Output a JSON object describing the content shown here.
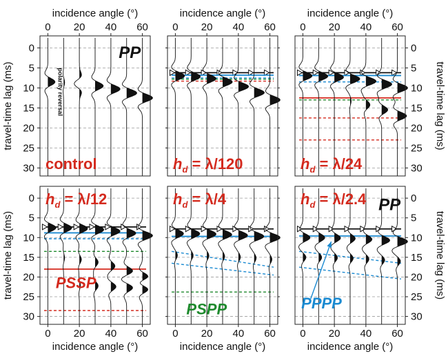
{
  "chart_data": {
    "type": "line",
    "x_label": "incidence angle (°)",
    "y_label": "travel-time lag (ms)",
    "x_ticks": [
      0,
      20,
      40,
      60
    ],
    "y_ticks": [
      0,
      5,
      10,
      15,
      20,
      25,
      30
    ],
    "xlim": [
      -5,
      65
    ],
    "ylim": [
      32,
      -3
    ],
    "trace_angles": [
      0,
      10,
      20,
      30,
      40,
      50,
      60
    ],
    "grid": "dashed horizontal",
    "colors": {
      "pp": "#111111",
      "pssp": "#d42a1e",
      "pspp": "#1f8a2e",
      "pppp": "#1b8ad1"
    },
    "panels": [
      {
        "id": "control",
        "label_prefix": "",
        "label_sub": "",
        "label_suffix": "control",
        "annotations": [
          {
            "text": "PP",
            "class": "blk-i",
            "x": 45,
            "y": 2.5,
            "size": 24
          },
          {
            "text": "polarity reversal",
            "class": "small",
            "x": 6.5,
            "y": 11,
            "size": 9,
            "rotate": 90
          }
        ],
        "events": [
          {
            "t0": 8.5,
            "amp": [
              0.7,
              0.1,
              -0.5,
              0.8,
              0.9,
              1.0,
              1.0
            ],
            "move": 4,
            "ext": [
              1,
              1,
              1,
              1,
              1,
              1,
              1
            ]
          }
        ],
        "lines": []
      },
      {
        "id": "l120",
        "label_prefix": "h",
        "label_sub": "d",
        "label_suffix": " = λ/120",
        "annotations": [],
        "events": [
          {
            "t0": 7,
            "amp": [
              0.9,
              0.9,
              0.9,
              0.95,
              1.0,
              1.0,
              1.0
            ],
            "move": 6,
            "ext": [
              1,
              1,
              1,
              1,
              1,
              1,
              1
            ]
          }
        ],
        "lines": [
          {
            "y": 6.2,
            "color": "black",
            "dash": "solid",
            "markers": true
          },
          {
            "y": 6.8,
            "color": "blue",
            "dash": "solid"
          },
          {
            "y": 7.5,
            "color": "blue",
            "dash": "dashed"
          },
          {
            "y": 8.3,
            "color": "red",
            "dash": "dashed"
          },
          {
            "y": 7.8,
            "color": "green",
            "dash": "dashed"
          }
        ]
      },
      {
        "id": "l24",
        "label_prefix": "h",
        "label_sub": "d",
        "label_suffix": " = λ/24",
        "annotations": [],
        "events": [
          {
            "t0": 7,
            "amp": [
              0.9,
              0.9,
              0.9,
              0.95,
              1.0,
              1.0,
              1.0
            ],
            "move": 3,
            "ext": [
              1,
              1,
              1,
              1,
              1,
              1,
              1
            ]
          },
          {
            "t0": 12,
            "amp": [
              0,
              0,
              0,
              0.1,
              0.4,
              0.6,
              0.9
            ],
            "move": 5,
            "ext": [
              1,
              1,
              1,
              1,
              1,
              1,
              1
            ]
          }
        ],
        "lines": [
          {
            "y": 6.2,
            "color": "black",
            "dash": "solid",
            "markers": true
          },
          {
            "y": 6.9,
            "color": "blue",
            "dash": "solid"
          },
          {
            "y": 8.5,
            "color": "blue",
            "dash": "dashed"
          },
          {
            "y": 12.5,
            "color": "red",
            "dash": "solid"
          },
          {
            "y": 13.0,
            "color": "green",
            "dash": "dashed"
          },
          {
            "y": 17.5,
            "color": "red",
            "dash": "dashed"
          },
          {
            "y": 23.0,
            "color": "red",
            "dash": "dashed"
          }
        ]
      },
      {
        "id": "l12",
        "label_prefix": "h",
        "label_sub": "d",
        "label_suffix": " = λ/12",
        "annotations": [
          {
            "text": "PSSP",
            "class": "red-i",
            "x": 5,
            "y": 22.8,
            "size": 22
          }
        ],
        "events": [
          {
            "t0": 7.5,
            "amp": [
              0.8,
              0.8,
              0.8,
              0.85,
              0.9,
              0.9,
              1.0
            ],
            "move": 2,
            "ext": [
              1,
              1,
              1,
              1,
              1,
              1,
              1
            ]
          },
          {
            "t0": 15,
            "amp": [
              0,
              0.1,
              0.2,
              0.3,
              0.4,
              0.6,
              0.7
            ],
            "move": 5,
            "ext": [
              1,
              1,
              1,
              1,
              1,
              1,
              1
            ]
          },
          {
            "t0": 22,
            "amp": [
              0,
              0,
              0.1,
              0.3,
              0.5,
              0.6,
              0.7
            ],
            "move": 1,
            "ext": [
              1,
              1,
              1,
              1,
              1,
              1,
              1
            ]
          }
        ],
        "lines": [
          {
            "y": 7.3,
            "color": "black",
            "dash": "solid",
            "markers": true
          },
          {
            "y": 8.8,
            "color": "blue",
            "dash": "solid"
          },
          {
            "y": 10.3,
            "color": "blue",
            "dash": "dashed"
          },
          {
            "y": 13.5,
            "color": "green",
            "dash": "dashed"
          },
          {
            "y": 18.0,
            "color": "red",
            "dash": "solid"
          },
          {
            "y": 28.5,
            "color": "red",
            "dash": "dashed"
          }
        ]
      },
      {
        "id": "l4",
        "label_prefix": "h",
        "label_sub": "d",
        "label_suffix": " = λ/4",
        "annotations": [
          {
            "text": "PSPP",
            "class": "grn-i",
            "x": 7,
            "y": 29.5,
            "size": 22
          }
        ],
        "events": [
          {
            "t0": 9,
            "amp": [
              0.8,
              0.85,
              0.9,
              0.9,
              0.9,
              0.95,
              1.0
            ],
            "move": 1,
            "ext": [
              1,
              1,
              1,
              1,
              1,
              1,
              1
            ]
          },
          {
            "t0": 14.5,
            "amp": [
              0.2,
              0.2,
              0.2,
              0.2,
              0.2,
              0.2,
              0.2
            ],
            "move": 1,
            "ext": [
              1,
              1,
              1,
              1,
              1,
              1,
              1
            ]
          }
        ],
        "lines": [
          {
            "y": 7.8,
            "color": "black",
            "dash": "solid",
            "markers": true
          },
          {
            "y": 9.7,
            "color": "blue",
            "dash": "solid"
          },
          {
            "y": 13.5,
            "color": "blue",
            "dash": "dashed",
            "slope": 4
          },
          {
            "y": 16.5,
            "color": "blue",
            "dash": "dashed",
            "slope": 3
          },
          {
            "y": 23.8,
            "color": "green",
            "dash": "dashed"
          }
        ]
      },
      {
        "id": "l2_4",
        "label_prefix": "h",
        "label_sub": "d",
        "label_suffix": " = λ/2.4",
        "annotations": [
          {
            "text": "PP",
            "class": "blk-i",
            "x": 48,
            "y": 3,
            "size": 24
          },
          {
            "text": "PPPP",
            "class": "blu-i",
            "x": -1,
            "y": 28,
            "size": 22
          }
        ],
        "events": [
          {
            "t0": 10,
            "amp": [
              0.7,
              0.6,
              0.6,
              0.5,
              0.6,
              0.8,
              1.0
            ],
            "move": 1,
            "ext": [
              1,
              1,
              1,
              1,
              1,
              1,
              1
            ]
          },
          {
            "t0": 15,
            "amp": [
              0.3,
              0.3,
              0.3,
              0.3,
              0.3,
              0.3,
              0.3
            ],
            "move": 1,
            "ext": [
              1,
              1,
              1,
              1,
              1,
              1,
              1
            ]
          }
        ],
        "lines": [
          {
            "y": 7.8,
            "color": "black",
            "dash": "solid",
            "markers": true
          },
          {
            "y": 9.6,
            "color": "blue",
            "dash": "solid"
          },
          {
            "y": 13.5,
            "color": "blue",
            "dash": "dashed",
            "slope": 3
          },
          {
            "y": 17.5,
            "color": "blue",
            "dash": "dashed",
            "slope": 3
          }
        ],
        "arrow": {
          "x1": 5,
          "y1": 25.5,
          "x2": 18,
          "y2": 11
        }
      }
    ]
  }
}
